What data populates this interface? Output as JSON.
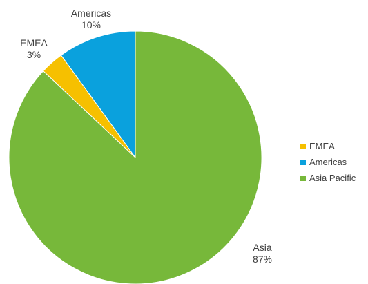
{
  "chart_data": {
    "type": "pie",
    "categories": [
      "Americas",
      "EMEA",
      "Asia Pacific"
    ],
    "values": [
      10,
      3,
      87
    ],
    "colors": [
      "#0aa1dd",
      "#f6c000",
      "#77b83a"
    ],
    "data_labels": [
      {
        "name": "Americas",
        "value": "10%"
      },
      {
        "name": "EMEA",
        "value": "3%"
      },
      {
        "name": "Asia",
        "value": "87%"
      }
    ],
    "legend": {
      "position": "right",
      "entries": [
        {
          "label": "EMEA",
          "color": "#f6c000"
        },
        {
          "label": "Americas",
          "color": "#0aa1dd"
        },
        {
          "label": "Asia Pacific",
          "color": "#77b83a"
        }
      ]
    }
  }
}
